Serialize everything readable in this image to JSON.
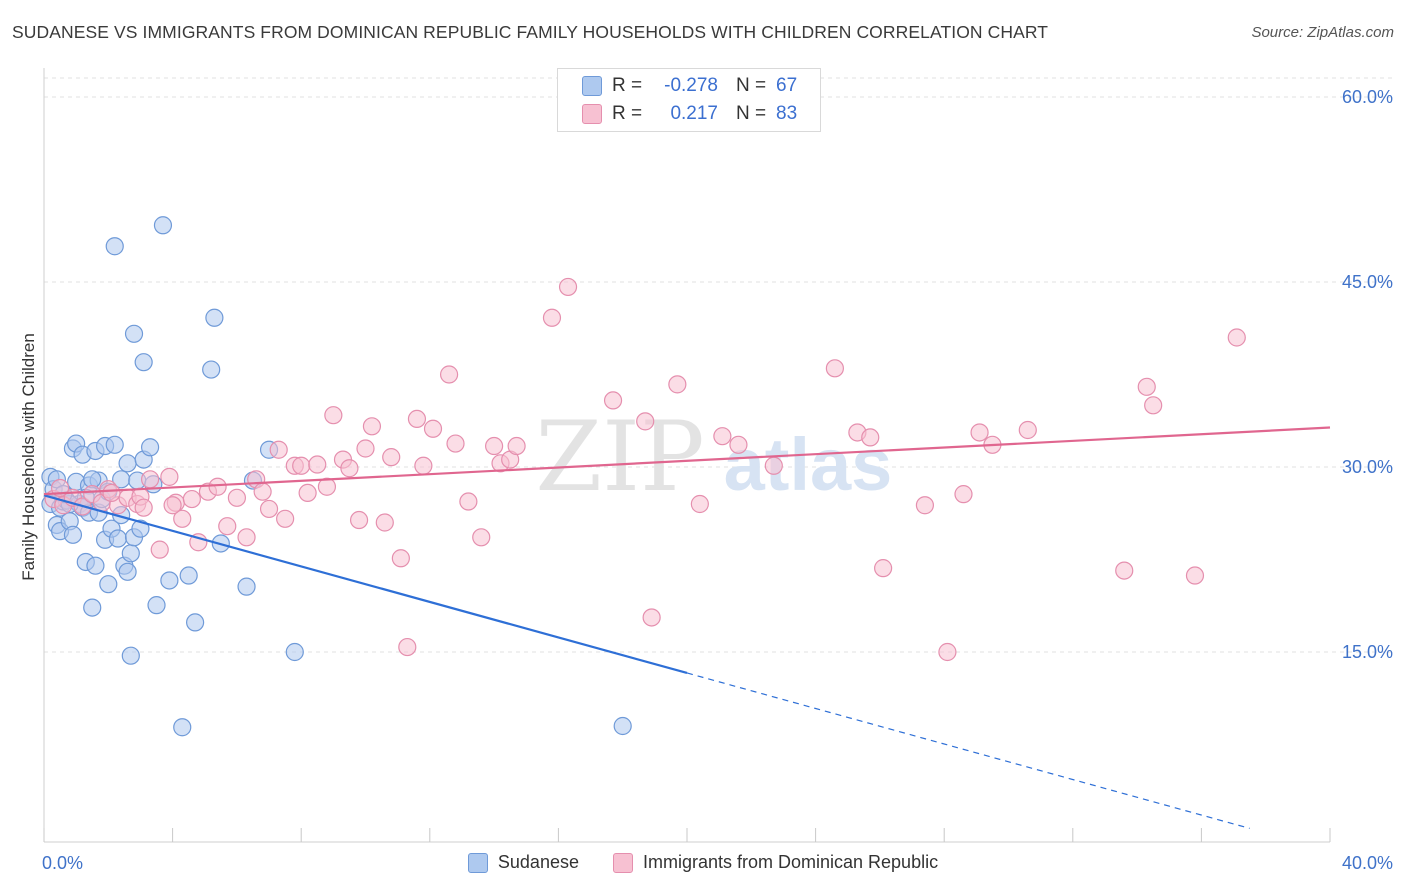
{
  "title": "SUDANESE VS IMMIGRANTS FROM DOMINICAN REPUBLIC FAMILY HOUSEHOLDS WITH CHILDREN CORRELATION CHART",
  "source": "Source: ZipAtlas.com",
  "watermark": {
    "zip": "ZIP",
    "atlas": "atlas"
  },
  "stats": [
    {
      "r_label": "R =",
      "r_value": "-0.278",
      "n_label": "N =",
      "n_value": "67",
      "color": "#6f9ad8"
    },
    {
      "r_label": "R =",
      "r_value": "0.217",
      "n_label": "N =",
      "n_value": "83",
      "color": "#e58fae"
    }
  ],
  "legend": [
    {
      "label": "Sudanese",
      "color": "#6f9ad8"
    },
    {
      "label": "Immigrants from Dominican Republic",
      "color": "#e58fae"
    }
  ],
  "chart_data": {
    "type": "scatter",
    "title": "SUDANESE VS IMMIGRANTS FROM DOMINICAN REPUBLIC FAMILY HOUSEHOLDS WITH CHILDREN CORRELATION CHART",
    "xlabel": "",
    "ylabel": "Family Households with Children",
    "xlim": [
      0,
      40
    ],
    "ylim": [
      0,
      61
    ],
    "x_tick_labels": [
      {
        "value": 0,
        "label": "0.0%"
      },
      {
        "value": 40,
        "label": "40.0%"
      }
    ],
    "y_tick_labels": [
      {
        "value": 15,
        "label": "15.0%"
      },
      {
        "value": 30,
        "label": "30.0%"
      },
      {
        "value": 45,
        "label": "45.0%"
      },
      {
        "value": 60,
        "label": "60.0%"
      }
    ],
    "x_minor_ticks": [
      0,
      4,
      8,
      12,
      16,
      20,
      24,
      28,
      32,
      36,
      40
    ],
    "grid": true,
    "series": [
      {
        "name": "Sudanese",
        "color": "#6f9ad8",
        "fill": "#aec9ef",
        "trend": {
          "x0": 0,
          "y0": 27.7,
          "x1": 20,
          "y1": 13.3,
          "dash_to_x": 37.5
        },
        "points": [
          [
            0.2,
            29.2
          ],
          [
            0.3,
            28.2
          ],
          [
            0.2,
            27.0
          ],
          [
            0.4,
            25.3
          ],
          [
            0.5,
            26.7
          ],
          [
            0.6,
            27.2
          ],
          [
            0.5,
            24.8
          ],
          [
            0.7,
            27.3
          ],
          [
            0.8,
            25.6
          ],
          [
            0.9,
            24.5
          ],
          [
            0.9,
            31.5
          ],
          [
            1.0,
            31.9
          ],
          [
            1.0,
            28.8
          ],
          [
            1.1,
            27.0
          ],
          [
            1.2,
            31.0
          ],
          [
            1.2,
            26.7
          ],
          [
            1.3,
            22.3
          ],
          [
            1.4,
            26.3
          ],
          [
            1.5,
            18.6
          ],
          [
            1.4,
            28.5
          ],
          [
            1.6,
            31.3
          ],
          [
            1.7,
            26.3
          ],
          [
            1.6,
            22.0
          ],
          [
            1.8,
            27.4
          ],
          [
            1.7,
            28.9
          ],
          [
            1.9,
            31.7
          ],
          [
            1.9,
            24.1
          ],
          [
            2.0,
            20.5
          ],
          [
            2.1,
            25.0
          ],
          [
            2.2,
            31.8
          ],
          [
            2.3,
            24.2
          ],
          [
            2.4,
            26.1
          ],
          [
            2.4,
            29.0
          ],
          [
            2.5,
            22.0
          ],
          [
            2.2,
            47.9
          ],
          [
            2.6,
            30.3
          ],
          [
            2.7,
            23.0
          ],
          [
            2.7,
            14.7
          ],
          [
            2.6,
            21.5
          ],
          [
            2.8,
            40.8
          ],
          [
            2.8,
            24.3
          ],
          [
            2.9,
            28.9
          ],
          [
            3.0,
            25.0
          ],
          [
            3.1,
            38.5
          ],
          [
            3.1,
            30.6
          ],
          [
            3.3,
            31.6
          ],
          [
            3.4,
            28.6
          ],
          [
            3.5,
            18.8
          ],
          [
            3.7,
            49.6
          ],
          [
            3.9,
            20.8
          ],
          [
            4.3,
            8.9
          ],
          [
            4.5,
            21.2
          ],
          [
            4.7,
            17.4
          ],
          [
            5.2,
            37.9
          ],
          [
            5.3,
            42.1
          ],
          [
            5.5,
            23.8
          ],
          [
            6.3,
            20.3
          ],
          [
            6.5,
            28.9
          ],
          [
            7.0,
            31.4
          ],
          [
            7.8,
            15.0
          ],
          [
            18.0,
            9.0
          ],
          [
            0.4,
            29.0
          ],
          [
            1.5,
            29.0
          ],
          [
            0.8,
            27.0
          ],
          [
            1.3,
            27.5
          ],
          [
            2.0,
            28.0
          ],
          [
            0.6,
            27.8
          ]
        ]
      },
      {
        "name": "Immigrants from Dominican Republic",
        "color": "#e58fae",
        "fill": "#f7c1d2",
        "trend": {
          "x0": 0,
          "y0": 27.8,
          "x1": 40,
          "y1": 33.2
        },
        "points": [
          [
            0.3,
            27.4
          ],
          [
            0.6,
            26.9
          ],
          [
            0.9,
            27.5
          ],
          [
            1.2,
            26.8
          ],
          [
            1.5,
            27.8
          ],
          [
            1.8,
            27.1
          ],
          [
            2.0,
            28.2
          ],
          [
            2.3,
            26.9
          ],
          [
            2.6,
            27.5
          ],
          [
            2.9,
            27.0
          ],
          [
            3.0,
            27.6
          ],
          [
            3.1,
            26.7
          ],
          [
            3.3,
            29.0
          ],
          [
            3.6,
            23.3
          ],
          [
            3.9,
            29.2
          ],
          [
            4.1,
            27.1
          ],
          [
            4.3,
            25.8
          ],
          [
            4.6,
            27.4
          ],
          [
            4.8,
            23.9
          ],
          [
            5.1,
            28.0
          ],
          [
            5.4,
            28.4
          ],
          [
            5.7,
            25.2
          ],
          [
            6.0,
            27.5
          ],
          [
            6.3,
            24.3
          ],
          [
            6.6,
            29.0
          ],
          [
            6.8,
            28.0
          ],
          [
            7.0,
            26.6
          ],
          [
            7.3,
            31.4
          ],
          [
            7.5,
            25.8
          ],
          [
            7.8,
            30.1
          ],
          [
            8.0,
            30.1
          ],
          [
            8.2,
            27.9
          ],
          [
            8.5,
            30.2
          ],
          [
            8.8,
            28.4
          ],
          [
            9.0,
            34.2
          ],
          [
            9.3,
            30.6
          ],
          [
            9.5,
            29.9
          ],
          [
            9.8,
            25.7
          ],
          [
            10.0,
            31.5
          ],
          [
            10.2,
            33.3
          ],
          [
            10.6,
            25.5
          ],
          [
            10.8,
            30.8
          ],
          [
            11.1,
            22.6
          ],
          [
            11.3,
            15.4
          ],
          [
            11.6,
            33.9
          ],
          [
            11.8,
            30.1
          ],
          [
            12.1,
            33.1
          ],
          [
            12.6,
            37.5
          ],
          [
            12.8,
            31.9
          ],
          [
            13.2,
            27.2
          ],
          [
            13.6,
            24.3
          ],
          [
            14.0,
            31.7
          ],
          [
            14.2,
            30.3
          ],
          [
            14.5,
            30.6
          ],
          [
            14.7,
            31.7
          ],
          [
            15.8,
            42.1
          ],
          [
            16.3,
            44.6
          ],
          [
            17.7,
            35.4
          ],
          [
            18.7,
            33.7
          ],
          [
            18.9,
            17.8
          ],
          [
            19.7,
            36.7
          ],
          [
            20.4,
            27.0
          ],
          [
            21.1,
            32.5
          ],
          [
            21.6,
            31.8
          ],
          [
            22.7,
            30.1
          ],
          [
            24.6,
            38.0
          ],
          [
            25.3,
            32.8
          ],
          [
            25.7,
            32.4
          ],
          [
            26.1,
            21.8
          ],
          [
            27.4,
            26.9
          ],
          [
            28.1,
            15.0
          ],
          [
            28.6,
            27.8
          ],
          [
            29.1,
            32.8
          ],
          [
            29.5,
            31.8
          ],
          [
            30.6,
            33.0
          ],
          [
            33.6,
            21.6
          ],
          [
            34.3,
            36.5
          ],
          [
            34.5,
            35.0
          ],
          [
            35.8,
            21.2
          ],
          [
            37.1,
            40.5
          ],
          [
            0.5,
            28.3
          ],
          [
            2.1,
            27.9
          ],
          [
            4.0,
            26.9
          ]
        ]
      }
    ]
  }
}
